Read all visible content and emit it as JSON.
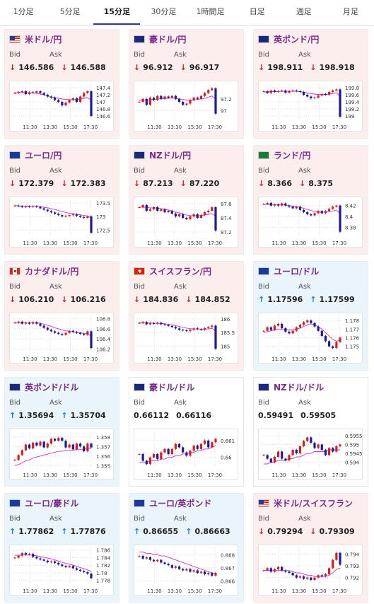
{
  "tabs": [
    {
      "label": "1分足",
      "active": false
    },
    {
      "label": "5分足",
      "active": false
    },
    {
      "label": "15分足",
      "active": true
    },
    {
      "label": "30分足",
      "active": false
    },
    {
      "label": "1時間足",
      "active": false
    },
    {
      "label": "日足",
      "active": false
    },
    {
      "label": "週足",
      "active": false
    },
    {
      "label": "月足",
      "active": false
    }
  ],
  "bid_label": "Bid",
  "ask_label": "Ask",
  "time_ticks": [
    "11:30",
    "13:30",
    "15:30",
    "17:30"
  ],
  "colors": {
    "up_candle": "#d81d1d",
    "down_candle": "#1a1a9a",
    "ma_line": "#cc33cc",
    "ma2_line": "#37b0d6",
    "down_bg": "#fdeeee",
    "up_bg": "#eaf4fb"
  },
  "cards": [
    {
      "pair": "米ドル/円",
      "flag": "us-jp",
      "dir": "down",
      "arrow": "↓",
      "bid": "146.586",
      "ask": "146.588",
      "chart_data": {
        "type": "candlestick",
        "y_ticks": [
          "147.4",
          "147.2",
          "147",
          "146.8",
          "146.6"
        ],
        "ylim": [
          146.5,
          147.5
        ],
        "trend": [
          147.25,
          147.28,
          147.3,
          147.22,
          147.27,
          147.26,
          147.3,
          147.25,
          147.2,
          147.15,
          147.12,
          147.05,
          147.0,
          146.9,
          146.98,
          147.05,
          147.1,
          147.0,
          147.15,
          147.25,
          147.3,
          146.6
        ],
        "ma": [
          147.25,
          147.26,
          147.27,
          147.26,
          147.25,
          147.25,
          147.24,
          147.22,
          147.2,
          147.17,
          147.14,
          147.12,
          147.1,
          147.08,
          147.07,
          147.06,
          147.06,
          147.07,
          147.08,
          147.1,
          147.12,
          147.05
        ]
      }
    },
    {
      "pair": "豪ドル/円",
      "flag": "au-jp",
      "dir": "down",
      "arrow": "↓",
      "bid": "96.912",
      "ask": "96.917",
      "chart_data": {
        "type": "candlestick",
        "y_ticks": [
          "97.2",
          "97"
        ],
        "ylim": [
          96.85,
          97.45
        ],
        "trend": [
          97.15,
          97.2,
          97.1,
          97.22,
          97.18,
          97.25,
          97.2,
          97.24,
          97.22,
          97.25,
          97.2,
          97.15,
          97.1,
          97.12,
          97.18,
          97.22,
          97.2,
          97.25,
          97.3,
          97.35,
          97.38,
          96.95
        ],
        "ma": [
          97.18,
          97.18,
          97.18,
          97.19,
          97.19,
          97.2,
          97.2,
          97.21,
          97.21,
          97.22,
          97.21,
          97.2,
          97.19,
          97.18,
          97.18,
          97.18,
          97.19,
          97.2,
          97.21,
          97.23,
          97.25,
          97.2
        ]
      }
    },
    {
      "pair": "英ポンド/円",
      "flag": "gb-jp",
      "dir": "down",
      "arrow": "↓",
      "bid": "198.911",
      "ask": "198.918",
      "chart_data": {
        "type": "candlestick",
        "y_ticks": [
          "199.8",
          "199.6",
          "199.4",
          "199.2",
          "199"
        ],
        "ylim": [
          198.9,
          199.9
        ],
        "trend": [
          199.7,
          199.65,
          199.72,
          199.68,
          199.7,
          199.72,
          199.66,
          199.7,
          199.72,
          199.7,
          199.68,
          199.6,
          199.55,
          199.5,
          199.52,
          199.58,
          199.62,
          199.6,
          199.68,
          199.72,
          199.75,
          198.98
        ],
        "ma": [
          199.68,
          199.68,
          199.69,
          199.69,
          199.69,
          199.7,
          199.7,
          199.7,
          199.7,
          199.7,
          199.69,
          199.67,
          199.65,
          199.63,
          199.62,
          199.61,
          199.61,
          199.61,
          199.62,
          199.64,
          199.66,
          199.55
        ]
      }
    },
    {
      "pair": "ユーロ/円",
      "flag": "eu-jp",
      "dir": "down",
      "arrow": "↓",
      "bid": "172.379",
      "ask": "172.383",
      "chart_data": {
        "type": "candlestick",
        "y_ticks": [
          "173.5",
          "173",
          "172.5"
        ],
        "ylim": [
          172.3,
          173.6
        ],
        "trend": [
          173.4,
          173.38,
          173.35,
          173.37,
          173.36,
          173.38,
          173.35,
          173.3,
          173.25,
          173.2,
          173.15,
          173.1,
          173.05,
          173.0,
          173.02,
          173.05,
          173.08,
          173.02,
          172.98,
          172.95,
          173.0,
          172.4
        ],
        "ma": [
          173.4,
          173.39,
          173.38,
          173.38,
          173.37,
          173.37,
          173.37,
          173.36,
          173.34,
          173.32,
          173.29,
          173.26,
          173.22,
          173.18,
          173.15,
          173.12,
          173.1,
          173.08,
          173.06,
          173.04,
          173.02,
          172.95
        ]
      }
    },
    {
      "pair": "NZドル/円",
      "flag": "nz-jp",
      "dir": "down",
      "arrow": "↓",
      "bid": "87.213",
      "ask": "87.220",
      "chart_data": {
        "type": "candlestick",
        "y_ticks": [
          "87.6",
          "87.4",
          "87.2"
        ],
        "ylim": [
          87.15,
          87.65
        ],
        "trend": [
          87.55,
          87.58,
          87.5,
          87.52,
          87.55,
          87.5,
          87.52,
          87.48,
          87.5,
          87.46,
          87.42,
          87.45,
          87.4,
          87.38,
          87.42,
          87.45,
          87.4,
          87.44,
          87.48,
          87.5,
          87.55,
          87.22
        ],
        "ma": [
          87.55,
          87.55,
          87.55,
          87.54,
          87.54,
          87.54,
          87.53,
          87.52,
          87.51,
          87.5,
          87.48,
          87.47,
          87.46,
          87.44,
          87.43,
          87.43,
          87.43,
          87.43,
          87.44,
          87.45,
          87.46,
          87.42
        ]
      }
    },
    {
      "pair": "ランド/円",
      "flag": "za-jp",
      "dir": "down",
      "arrow": "↓",
      "bid": "8.366",
      "ask": "8.375",
      "chart_data": {
        "type": "candlestick",
        "y_ticks": [
          "8.42",
          "8.4",
          "8.38"
        ],
        "ylim": [
          8.365,
          8.43
        ],
        "trend": [
          8.423,
          8.425,
          8.42,
          8.422,
          8.42,
          8.424,
          8.42,
          8.418,
          8.415,
          8.418,
          8.412,
          8.408,
          8.404,
          8.402,
          8.406,
          8.41,
          8.406,
          8.41,
          8.414,
          8.418,
          8.42,
          8.372
        ],
        "ma": [
          8.422,
          8.422,
          8.422,
          8.422,
          8.422,
          8.422,
          8.421,
          8.42,
          8.419,
          8.418,
          8.417,
          8.415,
          8.413,
          8.411,
          8.409,
          8.408,
          8.408,
          8.408,
          8.409,
          8.41,
          8.412,
          8.405
        ]
      }
    },
    {
      "pair": "カナダドル/円",
      "flag": "ca-jp",
      "dir": "down",
      "arrow": "↓",
      "bid": "106.210",
      "ask": "106.216",
      "chart_data": {
        "type": "candlestick",
        "y_ticks": [
          "106.8",
          "106.6",
          "106.4",
          "106.2"
        ],
        "ylim": [
          106.15,
          106.85
        ],
        "trend": [
          106.72,
          106.74,
          106.7,
          106.72,
          106.7,
          106.73,
          106.7,
          106.66,
          106.62,
          106.58,
          106.55,
          106.52,
          106.5,
          106.48,
          106.52,
          106.56,
          106.54,
          106.52,
          106.5,
          106.48,
          106.55,
          106.22
        ],
        "ma": [
          106.72,
          106.72,
          106.72,
          106.72,
          106.72,
          106.72,
          106.72,
          106.71,
          106.69,
          106.67,
          106.65,
          106.62,
          106.6,
          106.58,
          106.56,
          106.55,
          106.54,
          106.53,
          106.52,
          106.51,
          106.5,
          106.45
        ]
      }
    },
    {
      "pair": "スイスフラン/円",
      "flag": "ch-jp",
      "dir": "down",
      "arrow": "↓",
      "bid": "184.836",
      "ask": "184.852",
      "chart_data": {
        "type": "candlestick",
        "y_ticks": [
          "186",
          "185.5",
          "185"
        ],
        "ylim": [
          184.8,
          186.1
        ],
        "trend": [
          185.85,
          185.88,
          185.8,
          185.84,
          185.82,
          185.86,
          185.8,
          185.78,
          185.74,
          185.7,
          185.65,
          185.6,
          185.58,
          185.55,
          185.6,
          185.65,
          185.62,
          185.6,
          185.66,
          185.7,
          185.75,
          184.9
        ],
        "ma": [
          185.85,
          185.85,
          185.85,
          185.85,
          185.84,
          185.84,
          185.83,
          185.82,
          185.8,
          185.78,
          185.75,
          185.72,
          185.69,
          185.66,
          185.64,
          185.63,
          185.63,
          185.62,
          185.62,
          185.63,
          185.65,
          185.55
        ]
      }
    },
    {
      "pair": "ユーロ/ドル",
      "flag": "eu-us",
      "dir": "up",
      "arrow": "↑",
      "bid": "1.17596",
      "ask": "1.17599",
      "chart_data": {
        "type": "candlestick",
        "y_ticks": [
          "1.178",
          "1.177",
          "1.176",
          "1.175"
        ],
        "ylim": [
          1.1744,
          1.1785
        ],
        "trend": [
          1.1768,
          1.1772,
          1.1769,
          1.1774,
          1.1776,
          1.1771,
          1.1767,
          1.1765,
          1.1768,
          1.1772,
          1.1775,
          1.1778,
          1.178,
          1.1777,
          1.1773,
          1.1768,
          1.1762,
          1.1756,
          1.175,
          1.1748,
          1.1755,
          1.176
        ],
        "ma": [
          1.1766,
          1.1767,
          1.1768,
          1.1769,
          1.177,
          1.177,
          1.177,
          1.1769,
          1.1769,
          1.177,
          1.1771,
          1.1773,
          1.1775,
          1.1776,
          1.1775,
          1.1773,
          1.177,
          1.1766,
          1.1762,
          1.1758,
          1.1756,
          1.1757
        ]
      }
    },
    {
      "pair": "英ポンド/ドル",
      "flag": "gb-us",
      "dir": "up",
      "arrow": "↑",
      "bid": "1.35694",
      "ask": "1.35704",
      "chart_data": {
        "type": "candlestick",
        "y_ticks": [
          "1.358",
          "1.357",
          "1.356",
          "1.355"
        ],
        "ylim": [
          1.3548,
          1.3585
        ],
        "trend": [
          1.3556,
          1.3561,
          1.3566,
          1.3572,
          1.3568,
          1.3574,
          1.3571,
          1.3575,
          1.3569,
          1.3573,
          1.3578,
          1.3576,
          1.3579,
          1.3576,
          1.3569,
          1.3572,
          1.3567,
          1.3573,
          1.357,
          1.3565,
          1.3573,
          1.3569
        ],
        "ma": [
          1.355,
          1.3551,
          1.3553,
          1.3555,
          1.3556,
          1.3558,
          1.3559,
          1.356,
          1.3561,
          1.3562,
          1.3563,
          1.3564,
          1.3565,
          1.3565,
          1.3566,
          1.3566,
          1.3566,
          1.3567,
          1.3567,
          1.3567,
          1.3568,
          1.3568
        ]
      }
    },
    {
      "pair": "豪ドル/ドル",
      "flag": "au-us",
      "dir": "flat",
      "arrow": "",
      "bid": "0.66112",
      "ask": "0.66116",
      "chart_data": {
        "type": "candlestick",
        "y_ticks": [
          "0.661",
          "0.66"
        ],
        "ylim": [
          0.6594,
          0.6615
        ],
        "trend": [
          0.6602,
          0.6598,
          0.6596,
          0.66,
          0.6602,
          0.6599,
          0.6603,
          0.6605,
          0.6602,
          0.6605,
          0.6608,
          0.6606,
          0.6603,
          0.6601,
          0.6604,
          0.6607,
          0.6605,
          0.6608,
          0.661,
          0.6606,
          0.6609,
          0.6611
        ],
        "ma": [
          0.6597,
          0.6597,
          0.6597,
          0.6598,
          0.6598,
          0.6598,
          0.6599,
          0.6599,
          0.66,
          0.66,
          0.6601,
          0.6601,
          0.6602,
          0.6602,
          0.6603,
          0.6603,
          0.6604,
          0.6604,
          0.6605,
          0.6605,
          0.6606,
          0.6607
        ]
      }
    },
    {
      "pair": "NZドル/ドル",
      "flag": "nz-us",
      "dir": "flat",
      "arrow": "",
      "bid": "0.59491",
      "ask": "0.59505",
      "chart_data": {
        "type": "candlestick",
        "y_ticks": [
          "0.5955",
          "0.595",
          "0.5945",
          "0.594"
        ],
        "ylim": [
          0.5937,
          0.5957
        ],
        "trend": [
          0.5944,
          0.5942,
          0.594,
          0.5943,
          0.5946,
          0.5942,
          0.5941,
          0.5944,
          0.5947,
          0.5945,
          0.5949,
          0.5952,
          0.5954,
          0.5951,
          0.5948,
          0.595,
          0.5947,
          0.5944,
          0.5948,
          0.5946,
          0.5949,
          0.595
        ],
        "ma": [
          0.5939,
          0.5939,
          0.594,
          0.594,
          0.5941,
          0.5941,
          0.5941,
          0.5942,
          0.5942,
          0.5943,
          0.5943,
          0.5944,
          0.5945,
          0.5945,
          0.5946,
          0.5946,
          0.5946,
          0.5946,
          0.5947,
          0.5947,
          0.5947,
          0.5947
        ]
      }
    },
    {
      "pair": "ユーロ/豪ドル",
      "flag": "eu-au",
      "dir": "up",
      "arrow": "↑",
      "bid": "1.77862",
      "ask": "1.77876",
      "chart_data": {
        "type": "candlestick",
        "y_ticks": [
          "1.786",
          "1.784",
          "1.782",
          "1.78",
          "1.778"
        ],
        "ylim": [
          1.7772,
          1.7865
        ],
        "trend": [
          1.784,
          1.7845,
          1.7852,
          1.7848,
          1.785,
          1.7842,
          1.7838,
          1.7835,
          1.7832,
          1.7828,
          1.783,
          1.7826,
          1.7822,
          1.7818,
          1.7815,
          1.7818,
          1.7812,
          1.7808,
          1.7805,
          1.7802,
          1.7798,
          1.7786
        ],
        "ma": [
          1.7846,
          1.7846,
          1.7847,
          1.7847,
          1.7847,
          1.7846,
          1.7845,
          1.7843,
          1.7841,
          1.7839,
          1.7837,
          1.7834,
          1.7831,
          1.7828,
          1.7825,
          1.7823,
          1.782,
          1.7817,
          1.7814,
          1.7811,
          1.7808,
          1.7803
        ]
      }
    },
    {
      "pair": "ユーロ/英ポンド",
      "flag": "eu-gb",
      "dir": "up",
      "arrow": "↑",
      "bid": "0.86655",
      "ask": "0.86663",
      "chart_data": {
        "type": "candlestick",
        "y_ticks": [
          "0.868",
          "0.867",
          "0.866"
        ],
        "ylim": [
          0.8658,
          0.8685
        ],
        "trend": [
          0.8679,
          0.8677,
          0.8678,
          0.8676,
          0.8675,
          0.8676,
          0.8674,
          0.8673,
          0.8672,
          0.867,
          0.8671,
          0.8669,
          0.8668,
          0.8669,
          0.8667,
          0.8668,
          0.8666,
          0.8667,
          0.8665,
          0.8666,
          0.8664,
          0.8666
        ],
        "ma": [
          0.8682,
          0.8682,
          0.8681,
          0.8681,
          0.868,
          0.868,
          0.8679,
          0.8679,
          0.8678,
          0.8677,
          0.8676,
          0.8675,
          0.8674,
          0.8673,
          0.8672,
          0.8671,
          0.867,
          0.8669,
          0.8668,
          0.8667,
          0.8666,
          0.8666
        ]
      }
    },
    {
      "pair": "米ドル/スイスフラン",
      "flag": "us-ch",
      "dir": "down",
      "arrow": "↓",
      "bid": "0.79294",
      "ask": "0.79309",
      "chart_data": {
        "type": "candlestick",
        "y_ticks": [
          "0.794",
          "0.793",
          "0.792"
        ],
        "ylim": [
          0.7915,
          0.7945
        ],
        "trend": [
          0.7926,
          0.7928,
          0.7925,
          0.7927,
          0.7929,
          0.7926,
          0.7925,
          0.7924,
          0.7922,
          0.792,
          0.7921,
          0.7919,
          0.792,
          0.7918,
          0.792,
          0.7922,
          0.7921,
          0.7923,
          0.7928,
          0.7935,
          0.7941,
          0.7931
        ],
        "ma": [
          0.7926,
          0.7926,
          0.7926,
          0.7926,
          0.7926,
          0.7926,
          0.7926,
          0.7926,
          0.7925,
          0.7924,
          0.7924,
          0.7923,
          0.7922,
          0.7922,
          0.7921,
          0.7921,
          0.7921,
          0.7921,
          0.7922,
          0.7924,
          0.7927,
          0.7928
        ]
      }
    }
  ]
}
